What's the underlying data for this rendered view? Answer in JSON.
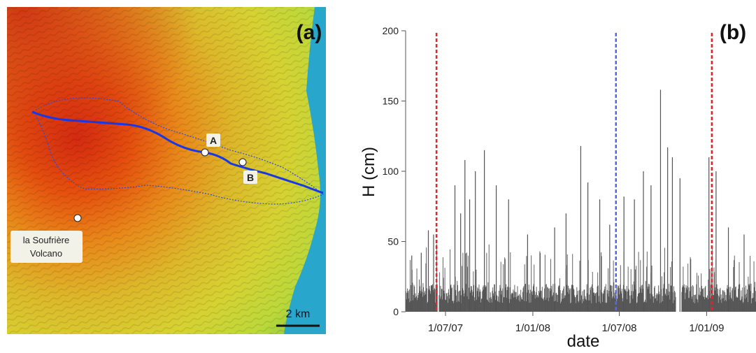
{
  "panel_a": {
    "label": "(a)",
    "point_a": "A",
    "point_b": "B",
    "volcano_line1": "la Soufrière",
    "volcano_line2": "Volcano",
    "scale_bar": "2 km"
  },
  "panel_b": {
    "label": "(b)"
  },
  "chart_data": {
    "type": "bar",
    "xlabel": "date",
    "ylabel": "H (cm)",
    "ylim": [
      0,
      200
    ],
    "yticks": [
      "0",
      "50",
      "100",
      "150",
      "200"
    ],
    "xticks": [
      "1/07/07",
      "1/01/08",
      "1/07/08",
      "1/01/09"
    ],
    "xlim": [
      "2007-04-08",
      "2009-04-15"
    ],
    "series": [
      {
        "values_description_peaks": [
          {
            "date": "2007-04-20",
            "value": 40
          },
          {
            "date": "2007-05-10",
            "value": 42
          },
          {
            "date": "2007-05-25",
            "value": 58
          },
          {
            "date": "2007-06-05",
            "value": 55
          },
          {
            "date": "2007-07-20",
            "value": 90
          },
          {
            "date": "2007-08-01",
            "value": 70
          },
          {
            "date": "2007-08-10",
            "value": 108
          },
          {
            "date": "2007-08-20",
            "value": 80
          },
          {
            "date": "2007-09-01",
            "value": 100
          },
          {
            "date": "2007-09-20",
            "value": 115
          },
          {
            "date": "2007-10-15",
            "value": 90
          },
          {
            "date": "2007-11-10",
            "value": 80
          },
          {
            "date": "2007-12-20",
            "value": 55
          },
          {
            "date": "2008-02-15",
            "value": 60
          },
          {
            "date": "2008-03-10",
            "value": 70
          },
          {
            "date": "2008-04-10",
            "value": 118
          },
          {
            "date": "2008-04-25",
            "value": 92
          },
          {
            "date": "2008-05-20",
            "value": 80
          },
          {
            "date": "2008-06-10",
            "value": 62
          },
          {
            "date": "2008-07-10",
            "value": 82
          },
          {
            "date": "2008-08-01",
            "value": 80
          },
          {
            "date": "2008-08-20",
            "value": 100
          },
          {
            "date": "2008-09-05",
            "value": 90
          },
          {
            "date": "2008-09-25",
            "value": 158
          },
          {
            "date": "2008-10-10",
            "value": 117
          },
          {
            "date": "2008-10-20",
            "value": 110
          },
          {
            "date": "2008-11-05",
            "value": 95
          },
          {
            "date": "2009-01-05",
            "value": 110
          },
          {
            "date": "2009-01-20",
            "value": 100
          },
          {
            "date": "2009-02-15",
            "value": 60
          },
          {
            "date": "2009-03-20",
            "value": 55
          }
        ]
      }
    ],
    "vlines": [
      {
        "date": "2007-06-12",
        "color": "#e8242a"
      },
      {
        "date": "2008-06-24",
        "color": "#5b63f0"
      },
      {
        "date": "2009-01-12",
        "color": "#e8242a"
      }
    ],
    "bar_color": "#545454"
  }
}
